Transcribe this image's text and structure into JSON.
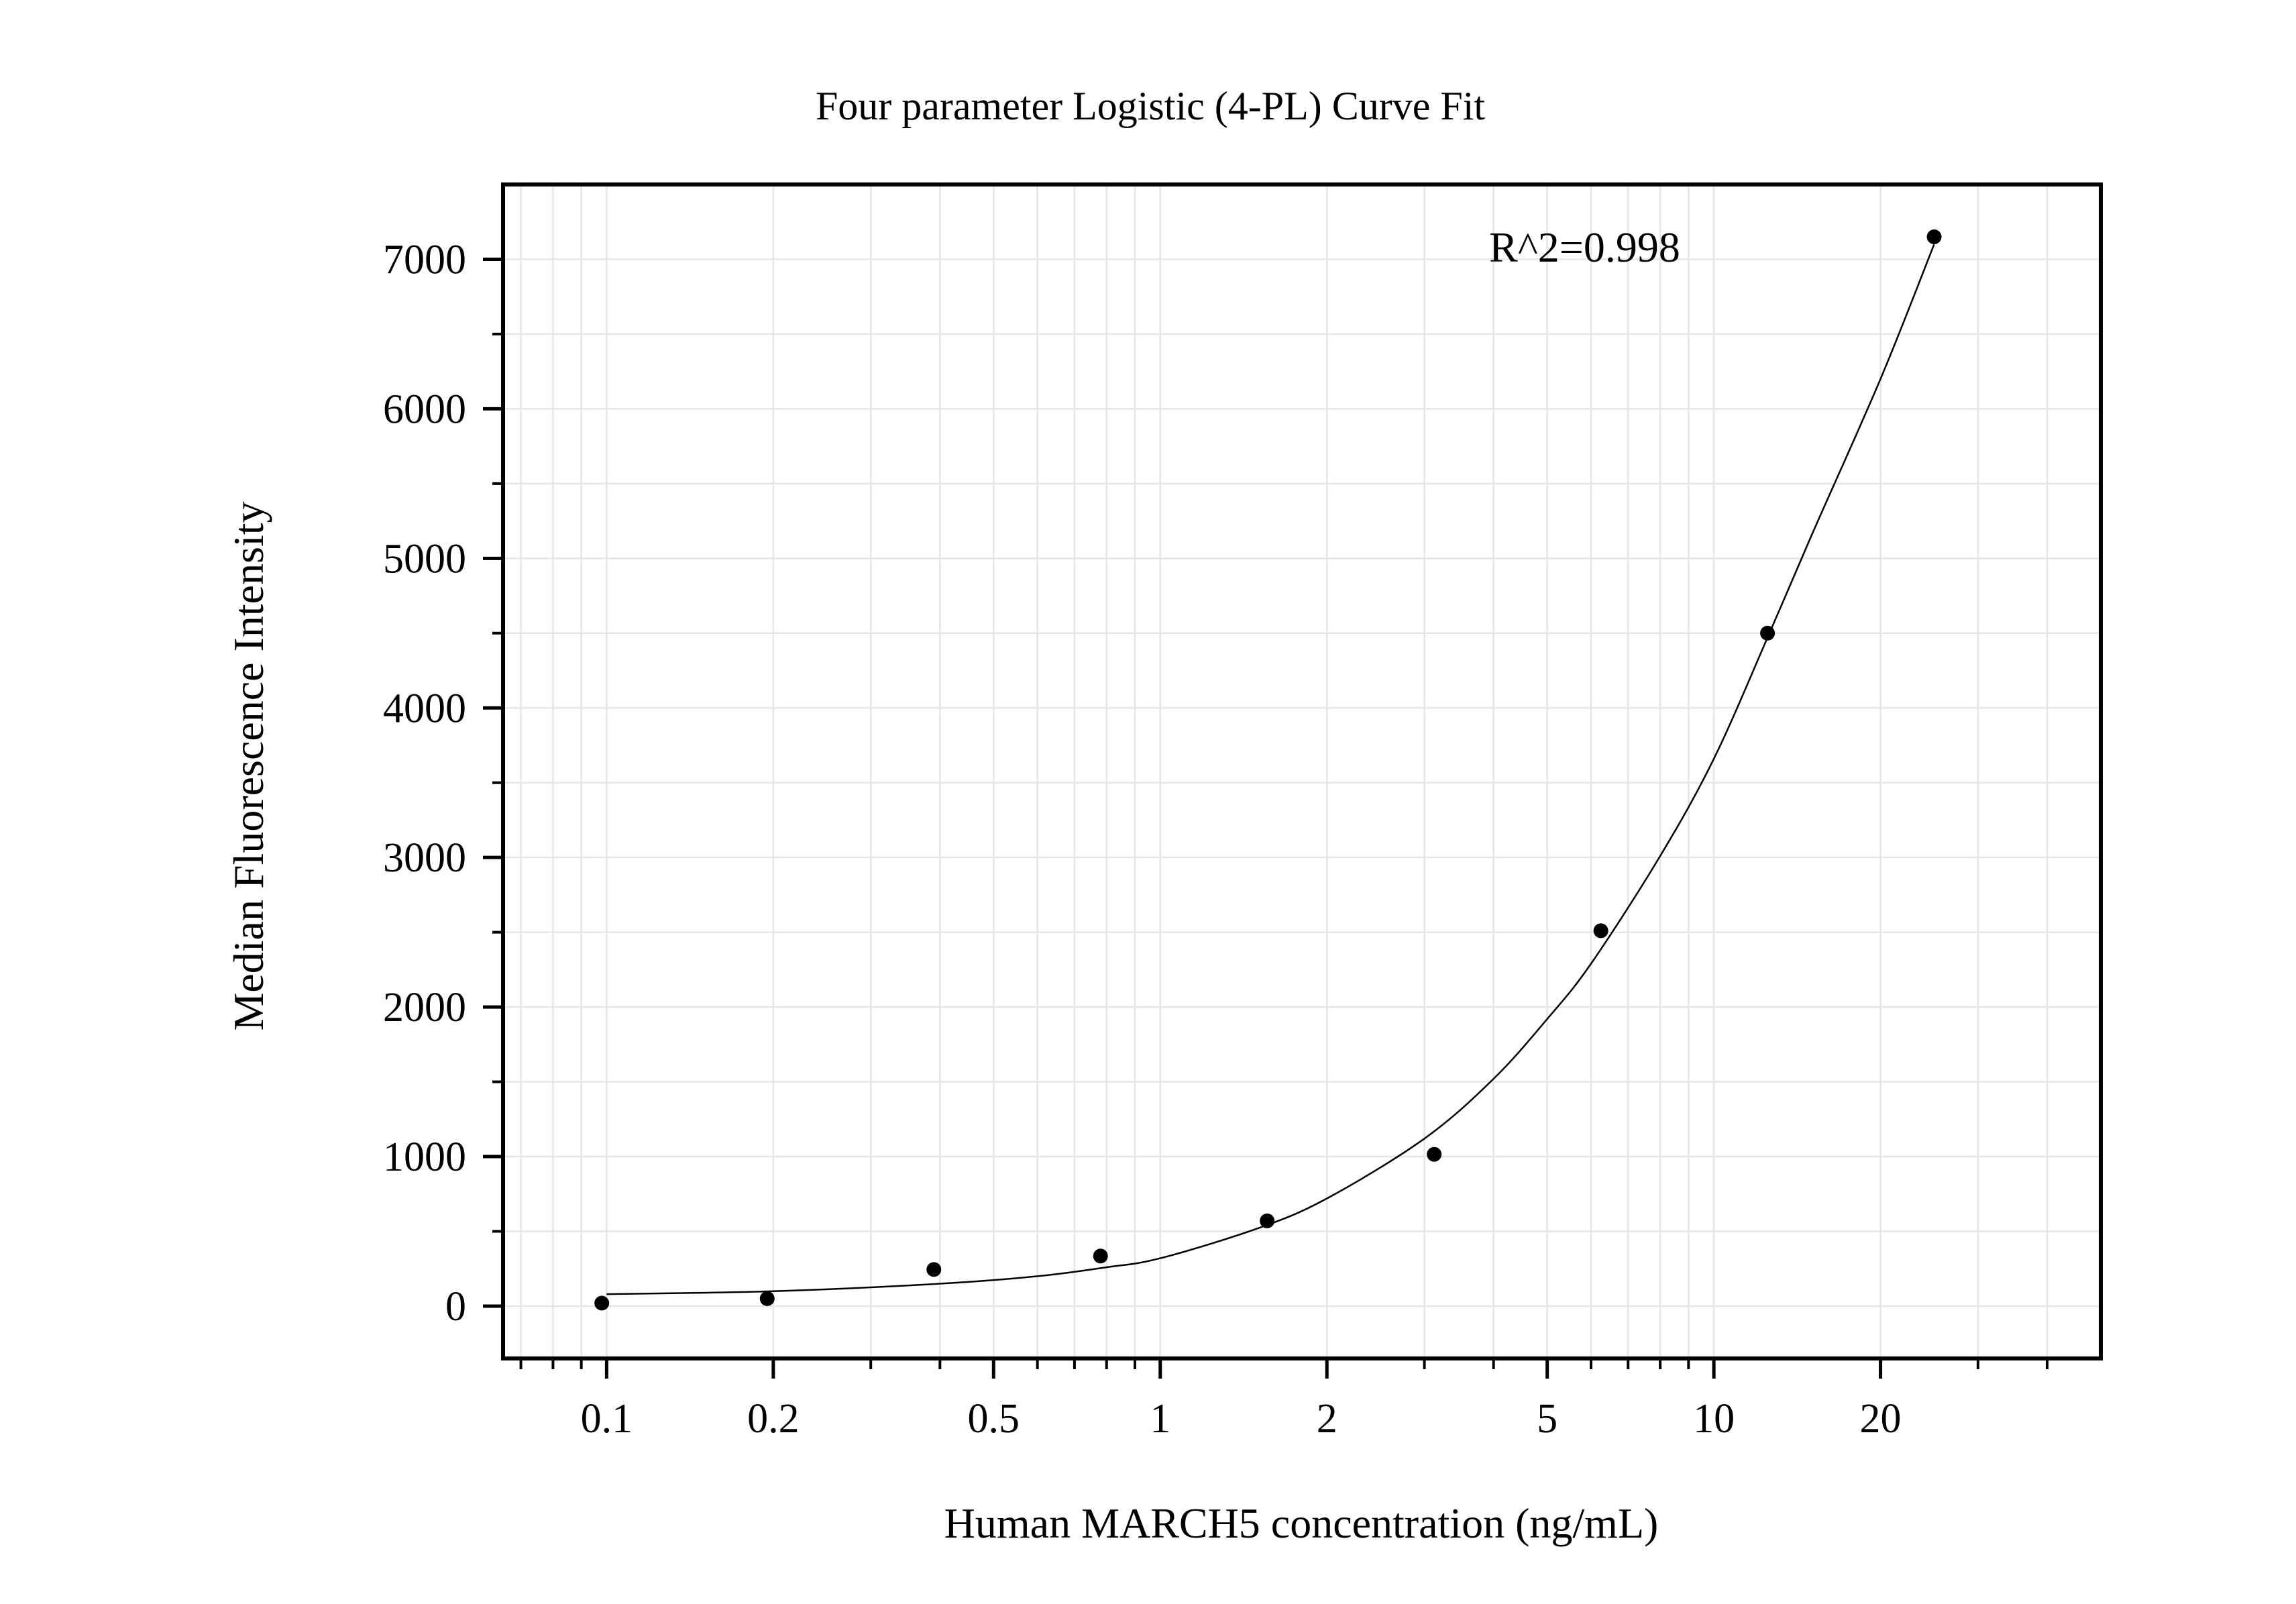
{
  "chart_data": {
    "type": "scatter",
    "title": "Four parameter Logistic (4-PL) Curve Fit",
    "xlabel": "Human MARCH5 concentration (ng/mL)",
    "ylabel": "Median Fluorescence Intensity",
    "xscale": "log",
    "xlim": [
      0.065,
      50
    ],
    "ylim": [
      -350,
      7500
    ],
    "grid": true,
    "legend": "none",
    "x_ticks": [
      {
        "value": 0.1,
        "label": "0.1"
      },
      {
        "value": 0.2,
        "label": "0.2"
      },
      {
        "value": 0.5,
        "label": "0.5"
      },
      {
        "value": 1,
        "label": "1"
      },
      {
        "value": 2,
        "label": "2"
      },
      {
        "value": 5,
        "label": "5"
      },
      {
        "value": 10,
        "label": "10"
      },
      {
        "value": 20,
        "label": "20"
      }
    ],
    "y_ticks": [
      {
        "value": 0,
        "label": "0"
      },
      {
        "value": 1000,
        "label": "1000"
      },
      {
        "value": 2000,
        "label": "2000"
      },
      {
        "value": 3000,
        "label": "3000"
      },
      {
        "value": 4000,
        "label": "4000"
      },
      {
        "value": 5000,
        "label": "5000"
      },
      {
        "value": 6000,
        "label": "6000"
      },
      {
        "value": 7000,
        "label": "7000"
      }
    ],
    "points": [
      {
        "x": 0.098,
        "y": 20
      },
      {
        "x": 0.195,
        "y": 50
      },
      {
        "x": 0.39,
        "y": 245
      },
      {
        "x": 0.78,
        "y": 335
      },
      {
        "x": 1.56,
        "y": 570
      },
      {
        "x": 3.125,
        "y": 1015
      },
      {
        "x": 6.25,
        "y": 2510
      },
      {
        "x": 12.5,
        "y": 4500
      },
      {
        "x": 25,
        "y": 7150
      }
    ],
    "fit_curve": {
      "x": [
        0.1,
        0.2,
        0.4,
        0.6,
        0.8,
        1,
        1.5,
        2,
        3,
        4,
        5,
        6,
        8,
        10,
        12.5,
        15,
        20,
        25
      ],
      "y": [
        80,
        100,
        150,
        200,
        260,
        320,
        520,
        720,
        1120,
        1520,
        1920,
        2290,
        3010,
        3660,
        4470,
        5150,
        6200,
        7100
      ]
    },
    "annotation": "R^2=0.998",
    "colors": {
      "points": "#000000",
      "curve": "#000000",
      "grid": "#e6e6e6",
      "frame": "#000000"
    }
  }
}
